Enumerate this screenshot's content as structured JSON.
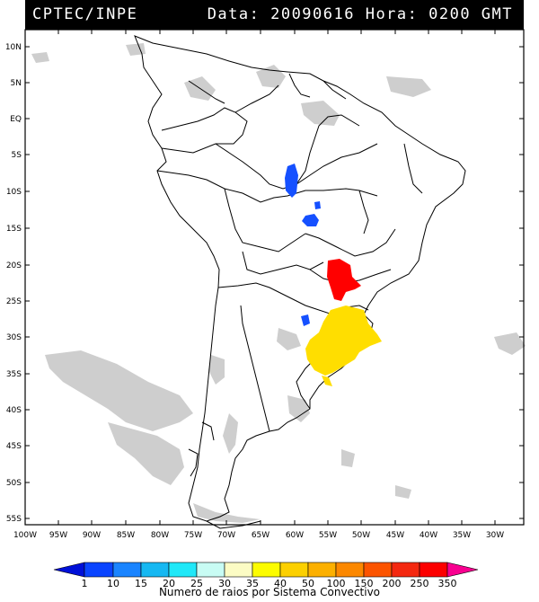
{
  "header": {
    "left": "CPTEC/INPE",
    "right": "Data: 20090616 Hora: 0200 GMT"
  },
  "map": {
    "lat_labels": [
      "10N",
      "5N",
      "EQ",
      "5S",
      "10S",
      "15S",
      "20S",
      "25S",
      "30S",
      "35S",
      "40S",
      "45S",
      "50S",
      "55S"
    ],
    "lon_labels": [
      "100W",
      "95W",
      "90W",
      "85W",
      "80W",
      "75W",
      "70W",
      "65W",
      "60W",
      "55W",
      "50W",
      "45W",
      "40W",
      "35W",
      "30W"
    ],
    "colors": {
      "blue_cells": "#1550ff",
      "red_cells": "#ff0000",
      "yellow_cells": "#ffde00",
      "clouds": "#c8c8c8"
    }
  },
  "legend": {
    "title": "Numero de raios por Sistema Convectivo",
    "values": [
      "1",
      "10",
      "15",
      "20",
      "25",
      "30",
      "35",
      "40",
      "50",
      "100",
      "150",
      "200",
      "250",
      "350"
    ],
    "colors": [
      "#0010d8",
      "#0a44ff",
      "#1a84ff",
      "#16b8f2",
      "#20e8f8",
      "#c8fcf4",
      "#fcfcc4",
      "#fcfc00",
      "#fcd000",
      "#fcb000",
      "#fc8800",
      "#fc5400",
      "#f42810",
      "#fc0000",
      "#f80090"
    ]
  }
}
